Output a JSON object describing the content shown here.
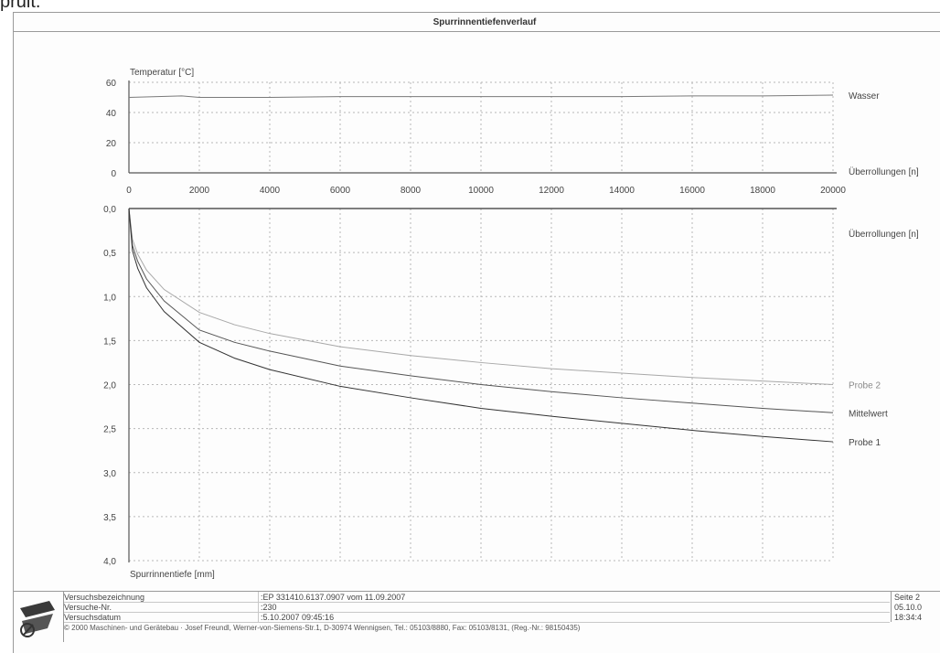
{
  "snippet_text": "pruit.",
  "chart_title": "Spurrinnentiefenverlauf",
  "chart_data": [
    {
      "type": "line",
      "title": "",
      "ylabel": "Temperatur [°C]",
      "xlabel": "Überrollungen [n]",
      "xlim": [
        0,
        20000
      ],
      "ylim": [
        0,
        60
      ],
      "xticks": [
        "0",
        "2000",
        "4000",
        "6000",
        "8000",
        "10000",
        "12000",
        "14000",
        "16000",
        "18000",
        "20000"
      ],
      "yticks": [
        "0",
        "20",
        "40",
        "60"
      ],
      "grid": true,
      "series": [
        {
          "name": "Wasser",
          "x": [
            0,
            1500,
            2000,
            3000,
            4000,
            6000,
            8000,
            10000,
            12000,
            14000,
            16000,
            18000,
            20000
          ],
          "y": [
            50,
            51,
            50,
            50,
            50,
            50.5,
            50.5,
            50.5,
            50.5,
            50.5,
            51,
            51,
            51.5
          ]
        }
      ]
    },
    {
      "type": "line",
      "title": "",
      "xlabel": "Überrollungen [n]",
      "ylabel": "Spurrinnentiefe [mm]",
      "xlim": [
        0,
        20000
      ],
      "ylim": [
        0,
        4.0
      ],
      "yticks": [
        "0,0",
        "0,5",
        "1,0",
        "1,5",
        "2,0",
        "2,5",
        "3,0",
        "3,5",
        "4,0"
      ],
      "y_inverted": true,
      "grid": true,
      "series": [
        {
          "name": "Probe 2",
          "x": [
            0,
            100,
            250,
            500,
            1000,
            2000,
            3000,
            4000,
            6000,
            8000,
            10000,
            12000,
            14000,
            16000,
            18000,
            20000
          ],
          "y": [
            0,
            0.35,
            0.52,
            0.7,
            0.92,
            1.18,
            1.32,
            1.42,
            1.57,
            1.67,
            1.75,
            1.82,
            1.87,
            1.92,
            1.96,
            2.0
          ]
        },
        {
          "name": "Mittelwert",
          "x": [
            0,
            100,
            250,
            500,
            1000,
            2000,
            3000,
            4000,
            6000,
            8000,
            10000,
            12000,
            14000,
            16000,
            18000,
            20000
          ],
          "y": [
            0,
            0.42,
            0.6,
            0.8,
            1.05,
            1.38,
            1.52,
            1.62,
            1.79,
            1.9,
            2.0,
            2.08,
            2.15,
            2.21,
            2.27,
            2.32
          ]
        },
        {
          "name": "Probe 1",
          "x": [
            0,
            100,
            250,
            500,
            1000,
            2000,
            3000,
            4000,
            6000,
            8000,
            10000,
            12000,
            14000,
            16000,
            18000,
            20000
          ],
          "y": [
            0,
            0.48,
            0.68,
            0.9,
            1.17,
            1.52,
            1.7,
            1.83,
            2.02,
            2.15,
            2.27,
            2.36,
            2.44,
            2.52,
            2.59,
            2.65
          ]
        }
      ]
    }
  ],
  "footer": {
    "label_name": "Versuchsbezeichnung",
    "value_name": ":EP 331410.6137.0907 vom 11.09.2007",
    "label_number": "Versuche-Nr.",
    "value_number": ":230",
    "label_date": "Versuchsdatum",
    "value_date": ":5.10.2007 09:45:16",
    "page_label": "Seite 2",
    "print_date": "05.10.0",
    "print_time": "18:34:4",
    "copyright": "© 2000 Maschinen- und Gerätebau · Josef Freundl, Werner-von-Siemens-Str.1, D-30974 Wennigsen, Tel.: 05103/8880, Fax: 05103/8131, (Reg.-Nr.: 98150435)"
  },
  "colors": {
    "grid": "#b8b8b8",
    "axis": "#555555",
    "wasser": "#7a7a7a",
    "probe2": "#a8a8a8",
    "mittelwert": "#555555",
    "probe1": "#333333"
  }
}
